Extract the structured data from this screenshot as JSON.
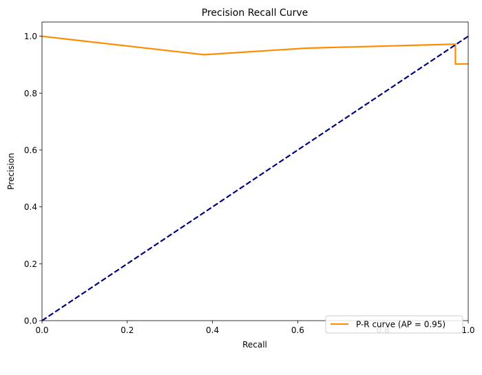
{
  "chart_data": {
    "type": "line",
    "title": "Precision Recall Curve",
    "xlabel": "Recall",
    "ylabel": "Precision",
    "xlim": [
      0.0,
      1.0
    ],
    "ylim": [
      0.0,
      1.05
    ],
    "xticks": [
      0.0,
      0.2,
      0.4,
      0.6,
      0.8,
      1.0
    ],
    "yticks": [
      0.0,
      0.2,
      0.4,
      0.6,
      0.8,
      1.0
    ],
    "xtick_labels": [
      "0.0",
      "0.2",
      "0.4",
      "0.6",
      "0.8",
      "1.0"
    ],
    "ytick_labels": [
      "0.0",
      "0.2",
      "0.4",
      "0.6",
      "0.8",
      "1.0"
    ],
    "grid": false,
    "legend_position": "lower-right",
    "series": [
      {
        "name": "P-R curve (AP = 0.95)",
        "color": "#ff8c00",
        "style": "solid",
        "x": [
          0.0,
          0.38,
          0.62,
          0.97,
          0.97,
          1.0
        ],
        "y": [
          1.0,
          0.935,
          0.958,
          0.972,
          0.902,
          0.903
        ]
      },
      {
        "name": "",
        "color": "#000080",
        "style": "dashed",
        "x": [
          0.0,
          1.0
        ],
        "y": [
          0.0,
          1.0
        ]
      }
    ]
  }
}
